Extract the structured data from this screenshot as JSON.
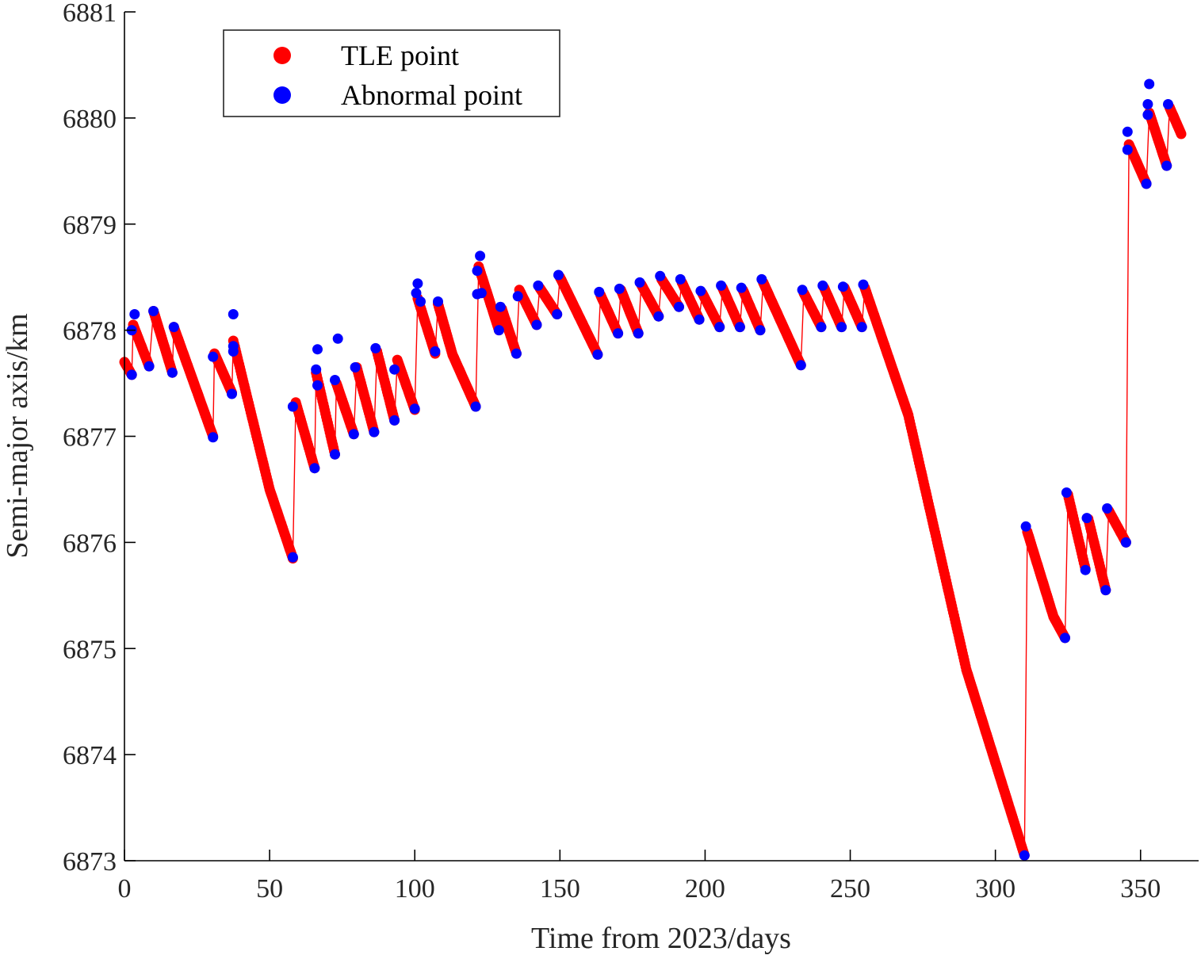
{
  "chart_data": {
    "type": "scatter",
    "xlabel": "Time from 2023/days",
    "ylabel": "Semi-major axis/km",
    "xlim": [
      0,
      370
    ],
    "ylim": [
      6873,
      6881
    ],
    "xticks": [
      0,
      50,
      100,
      150,
      200,
      250,
      300,
      350
    ],
    "yticks": [
      6873,
      6874,
      6875,
      6876,
      6877,
      6878,
      6879,
      6880,
      6881
    ],
    "legend_position": "top-left",
    "colors": {
      "tle": "#ff0000",
      "abnormal": "#0000ff",
      "line": "#ff0000"
    },
    "series": [
      {
        "name": "TLE point",
        "color": "#ff0000",
        "segments": [
          [
            [
              0,
              6877.7
            ],
            [
              2.5,
              6877.58
            ]
          ],
          [
            [
              3,
              6878.05
            ],
            [
              8.5,
              6877.66
            ]
          ],
          [
            [
              10,
              6878.18
            ],
            [
              16.5,
              6877.6
            ]
          ],
          [
            [
              17,
              6878.03
            ],
            [
              30.5,
              6877.0
            ]
          ],
          [
            [
              31,
              6877.78
            ],
            [
              37,
              6877.41
            ]
          ],
          [
            [
              37.5,
              6877.9
            ],
            [
              50,
              6876.5
            ],
            [
              58,
              6875.85
            ]
          ],
          [
            [
              59,
              6877.32
            ],
            [
              65.5,
              6876.7
            ]
          ],
          [
            [
              66,
              6877.6
            ],
            [
              72.5,
              6876.83
            ]
          ],
          [
            [
              73,
              6877.5
            ],
            [
              79,
              6877.02
            ]
          ],
          [
            [
              80,
              6877.65
            ],
            [
              86,
              6877.04
            ]
          ],
          [
            [
              87,
              6877.8
            ],
            [
              93,
              6877.15
            ]
          ],
          [
            [
              94,
              6877.72
            ],
            [
              100,
              6877.25
            ]
          ],
          [
            [
              101,
              6878.3
            ],
            [
              107,
              6877.78
            ]
          ],
          [
            [
              108,
              6878.25
            ],
            [
              113,
              6877.77
            ],
            [
              121,
              6877.28
            ]
          ],
          [
            [
              122,
              6878.6
            ],
            [
              129,
              6878.0
            ]
          ],
          [
            [
              130,
              6878.2
            ],
            [
              135,
              6877.78
            ]
          ],
          [
            [
              136,
              6878.38
            ],
            [
              142,
              6878.05
            ]
          ],
          [
            [
              143,
              6878.4
            ],
            [
              149,
              6878.15
            ]
          ],
          [
            [
              150,
              6878.5
            ],
            [
              163,
              6877.77
            ]
          ],
          [
            [
              164,
              6878.33
            ],
            [
              170,
              6877.97
            ]
          ],
          [
            [
              171,
              6878.38
            ],
            [
              177,
              6877.97
            ]
          ],
          [
            [
              178,
              6878.43
            ],
            [
              184,
              6878.13
            ]
          ],
          [
            [
              185,
              6878.48
            ],
            [
              191,
              6878.22
            ]
          ],
          [
            [
              192,
              6878.45
            ],
            [
              198,
              6878.1
            ]
          ],
          [
            [
              199,
              6878.35
            ],
            [
              205,
              6878.03
            ]
          ],
          [
            [
              206,
              6878.4
            ],
            [
              212,
              6878.03
            ]
          ],
          [
            [
              213,
              6878.38
            ],
            [
              219,
              6878.0
            ]
          ],
          [
            [
              220,
              6878.45
            ],
            [
              233,
              6877.67
            ]
          ],
          [
            [
              234,
              6878.35
            ],
            [
              240,
              6878.03
            ]
          ],
          [
            [
              241,
              6878.4
            ],
            [
              247,
              6878.03
            ]
          ],
          [
            [
              248,
              6878.4
            ],
            [
              254,
              6878.03
            ]
          ],
          [
            [
              255,
              6878.4
            ],
            [
              270,
              6877.2
            ],
            [
              290,
              6874.8
            ],
            [
              310,
              6873.05
            ]
          ],
          [
            [
              311,
              6876.1
            ],
            [
              320,
              6875.3
            ],
            [
              324,
              6875.1
            ]
          ],
          [
            [
              325,
              6876.45
            ],
            [
              331,
              6875.75
            ]
          ],
          [
            [
              332,
              6876.22
            ],
            [
              338,
              6875.55
            ]
          ],
          [
            [
              339,
              6876.3
            ],
            [
              345,
              6876.0
            ]
          ],
          [
            [
              346,
              6879.75
            ],
            [
              352,
              6879.38
            ]
          ],
          [
            [
              353,
              6880.05
            ],
            [
              359,
              6879.55
            ]
          ],
          [
            [
              360,
              6880.1
            ],
            [
              364,
              6879.85
            ]
          ]
        ]
      },
      {
        "name": "Abnormal point",
        "color": "#0000ff",
        "points": [
          [
            2.5,
            6877.58
          ],
          [
            2.5,
            6878.0
          ],
          [
            3.5,
            6878.15
          ],
          [
            8.5,
            6877.66
          ],
          [
            10,
            6878.18
          ],
          [
            16.5,
            6877.6
          ],
          [
            17,
            6878.03
          ],
          [
            30.5,
            6876.99
          ],
          [
            30.5,
            6877.75
          ],
          [
            37,
            6877.4
          ],
          [
            37.5,
            6878.15
          ],
          [
            37.5,
            6877.8
          ],
          [
            37.5,
            6877.85
          ],
          [
            58,
            6875.86
          ],
          [
            58,
            6877.28
          ],
          [
            65.5,
            6876.7
          ],
          [
            66,
            6877.63
          ],
          [
            66.5,
            6877.82
          ],
          [
            66.5,
            6877.48
          ],
          [
            72.5,
            6876.83
          ],
          [
            72.5,
            6877.53
          ],
          [
            73.5,
            6877.92
          ],
          [
            79,
            6877.02
          ],
          [
            79.5,
            6877.65
          ],
          [
            86,
            6877.04
          ],
          [
            86.5,
            6877.83
          ],
          [
            93,
            6877.15
          ],
          [
            93,
            6877.63
          ],
          [
            100,
            6877.26
          ],
          [
            100.5,
            6878.35
          ],
          [
            101,
            6878.44
          ],
          [
            102,
            6878.27
          ],
          [
            107,
            6877.8
          ],
          [
            108,
            6878.27
          ],
          [
            121,
            6877.28
          ],
          [
            121.5,
            6878.34
          ],
          [
            121.5,
            6878.56
          ],
          [
            122.5,
            6878.7
          ],
          [
            123,
            6878.35
          ],
          [
            129,
            6878.0
          ],
          [
            129.5,
            6878.22
          ],
          [
            135,
            6877.78
          ],
          [
            135.5,
            6878.32
          ],
          [
            142,
            6878.05
          ],
          [
            142.5,
            6878.42
          ],
          [
            149,
            6878.15
          ],
          [
            149.5,
            6878.52
          ],
          [
            163,
            6877.77
          ],
          [
            163.5,
            6878.36
          ],
          [
            170,
            6877.97
          ],
          [
            170.5,
            6878.39
          ],
          [
            177,
            6877.97
          ],
          [
            177.5,
            6878.45
          ],
          [
            184,
            6878.13
          ],
          [
            184.5,
            6878.51
          ],
          [
            191,
            6878.22
          ],
          [
            191.5,
            6878.48
          ],
          [
            198,
            6878.1
          ],
          [
            198.5,
            6878.37
          ],
          [
            205,
            6878.03
          ],
          [
            205.5,
            6878.42
          ],
          [
            212,
            6878.03
          ],
          [
            212.5,
            6878.4
          ],
          [
            219,
            6878.0
          ],
          [
            219.5,
            6878.48
          ],
          [
            233,
            6877.67
          ],
          [
            233.5,
            6878.38
          ],
          [
            240,
            6878.03
          ],
          [
            240.5,
            6878.42
          ],
          [
            247,
            6878.03
          ],
          [
            247.5,
            6878.41
          ],
          [
            254,
            6878.03
          ],
          [
            254.5,
            6878.43
          ],
          [
            310,
            6873.05
          ],
          [
            310.5,
            6876.15
          ],
          [
            324,
            6875.1
          ],
          [
            324.5,
            6876.47
          ],
          [
            331,
            6875.74
          ],
          [
            331.5,
            6876.23
          ],
          [
            338,
            6875.55
          ],
          [
            338.5,
            6876.32
          ],
          [
            345,
            6876.0
          ],
          [
            345.5,
            6879.87
          ],
          [
            345.5,
            6879.7
          ],
          [
            352,
            6879.38
          ],
          [
            352.5,
            6880.13
          ],
          [
            352.5,
            6880.03
          ],
          [
            353,
            6880.32
          ],
          [
            359,
            6879.55
          ],
          [
            359.5,
            6880.13
          ]
        ]
      }
    ]
  }
}
